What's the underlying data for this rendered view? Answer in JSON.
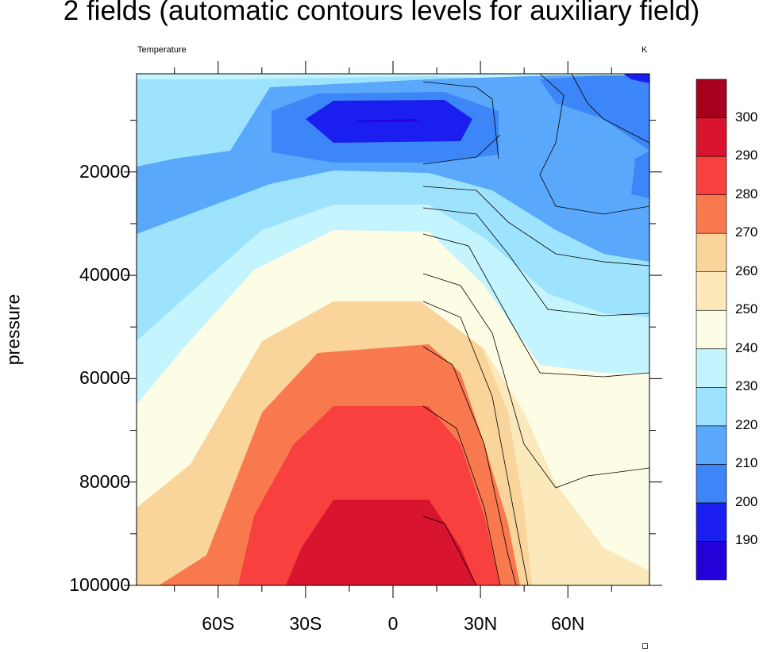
{
  "chart_data": {
    "type": "heatmap",
    "title": "2 fields (automatic contours levels for auxiliary field)",
    "left_subtitle": "Temperature",
    "right_subtitle": "K",
    "ylabel": "pressure",
    "xlabel": "",
    "x_ticks": [
      "60S",
      "30S",
      "0",
      "30N",
      "60N"
    ],
    "x_tick_values": [
      -60,
      -30,
      0,
      30,
      60
    ],
    "xlim": [
      -88,
      88
    ],
    "y_ticks": [
      "20000",
      "40000",
      "60000",
      "80000",
      "100000"
    ],
    "y_tick_values": [
      20000,
      40000,
      60000,
      80000,
      100000
    ],
    "ylim": [
      1000,
      100000
    ],
    "y_reversed": true,
    "colorbar": {
      "labels": [
        "190",
        "200",
        "210",
        "220",
        "230",
        "240",
        "250",
        "260",
        "270",
        "280",
        "290",
        "300"
      ],
      "colors": [
        "#2600d8",
        "#1a1ff0",
        "#3d86f7",
        "#5aa8fb",
        "#9de3fd",
        "#c4f4fd",
        "#fdfde6",
        "#fbe9bc",
        "#fad59b",
        "#f9794f",
        "#f8403e",
        "#d9142f",
        "#a8001f"
      ]
    },
    "auxiliary_contours": "black lines, northern hemisphere"
  },
  "corner_mark": "□"
}
